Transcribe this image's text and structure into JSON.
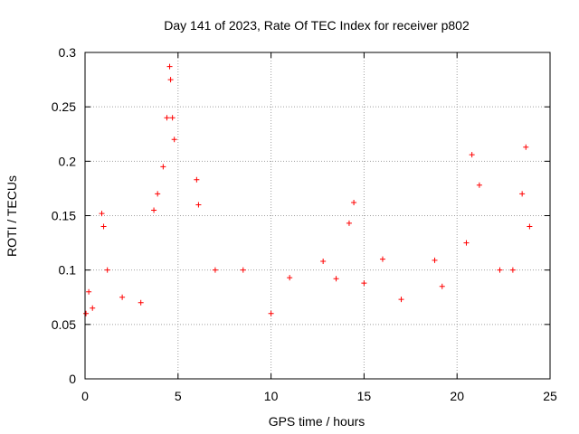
{
  "chart_data": {
    "type": "scatter",
    "title": "Day 141 of 2023, Rate Of TEC Index for receiver p802",
    "xlabel": "GPS time / hours",
    "ylabel": "ROTI / TECUs",
    "xlim": [
      0,
      25
    ],
    "ylim": [
      0,
      0.3
    ],
    "x_ticks": [
      "0",
      "5",
      "10",
      "15",
      "20",
      "25"
    ],
    "y_ticks": [
      "0",
      "0.05",
      "0.1",
      "0.15",
      "0.2",
      "0.25",
      "0.3"
    ],
    "grid": true,
    "marker": "+",
    "color": "#ff0000",
    "series": [
      {
        "name": "ROTI",
        "points": [
          [
            0.05,
            0.06
          ],
          [
            0.2,
            0.08
          ],
          [
            0.4,
            0.065
          ],
          [
            0.9,
            0.152
          ],
          [
            1.0,
            0.14
          ],
          [
            1.2,
            0.1
          ],
          [
            2.0,
            0.075
          ],
          [
            3.0,
            0.07
          ],
          [
            3.7,
            0.155
          ],
          [
            3.9,
            0.17
          ],
          [
            4.2,
            0.195
          ],
          [
            4.4,
            0.24
          ],
          [
            4.55,
            0.287
          ],
          [
            4.6,
            0.275
          ],
          [
            4.7,
            0.24
          ],
          [
            4.8,
            0.22
          ],
          [
            6.0,
            0.183
          ],
          [
            6.1,
            0.16
          ],
          [
            7.0,
            0.1
          ],
          [
            8.5,
            0.1
          ],
          [
            10.0,
            0.06
          ],
          [
            11.0,
            0.093
          ],
          [
            12.8,
            0.108
          ],
          [
            13.5,
            0.092
          ],
          [
            14.2,
            0.143
          ],
          [
            14.45,
            0.162
          ],
          [
            15.0,
            0.088
          ],
          [
            16.0,
            0.11
          ],
          [
            17.0,
            0.073
          ],
          [
            18.8,
            0.109
          ],
          [
            19.2,
            0.085
          ],
          [
            20.5,
            0.125
          ],
          [
            20.8,
            0.206
          ],
          [
            21.2,
            0.178
          ],
          [
            22.3,
            0.1
          ],
          [
            23.0,
            0.1
          ],
          [
            23.5,
            0.17
          ],
          [
            23.7,
            0.213
          ],
          [
            23.9,
            0.14
          ]
        ]
      }
    ]
  }
}
